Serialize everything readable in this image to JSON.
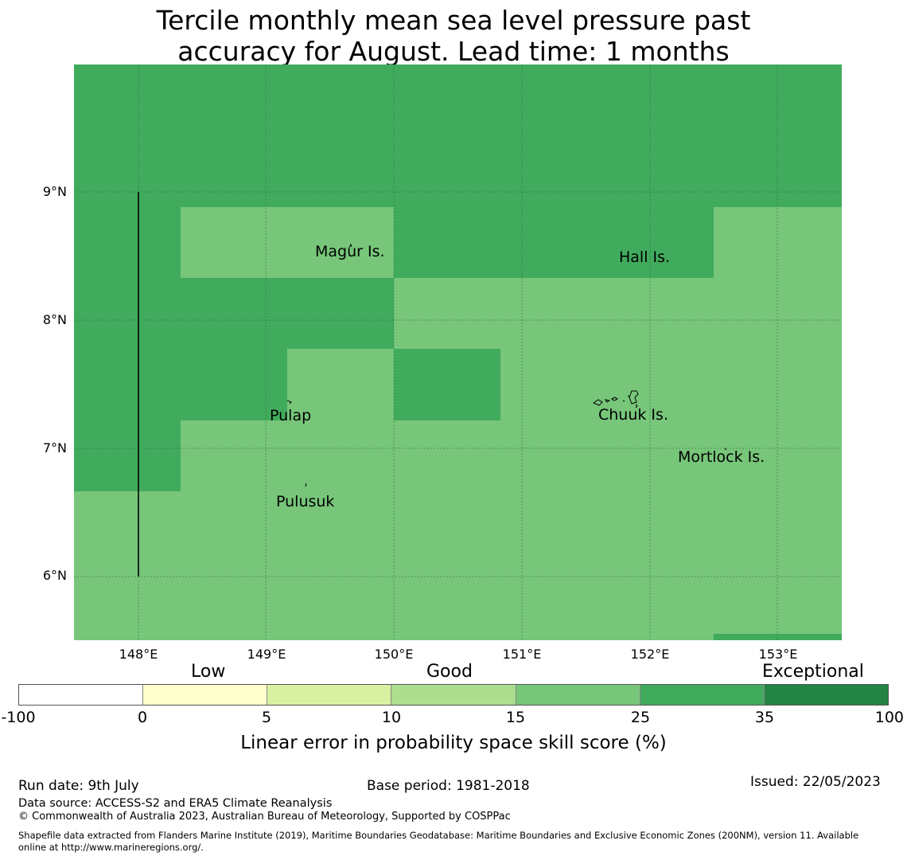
{
  "title": {
    "line1": "Tercile monthly mean sea level pressure past",
    "line2": "accuracy for August. Lead time: 1 months"
  },
  "map": {
    "lon_range": [
      147.5,
      153.5
    ],
    "lat_range": [
      5.5,
      10.0
    ],
    "x_ticks": [
      "148°E",
      "149°E",
      "150°E",
      "151°E",
      "152°E",
      "153°E"
    ],
    "y_ticks": [
      "9°N",
      "8°N",
      "7°N",
      "6°N"
    ],
    "grid": true,
    "places": {
      "magur": "Magur Is.",
      "hall": "Hall Is.",
      "pulap": "Pulap",
      "chuuk": "Chuuk Is.",
      "mortlock": "Mortlock Is.",
      "pulusuk": "Pulusuk"
    },
    "colors": {
      "cat_25_35": "#41ab5d",
      "cat_15_25": "#77c67a"
    }
  },
  "colorbar": {
    "categories": [
      "Low",
      "Good",
      "Exceptional"
    ],
    "ticks": [
      "-100",
      "0",
      "5",
      "10",
      "15",
      "25",
      "35",
      "100"
    ],
    "colors": [
      "#ffffff",
      "#ffffcc",
      "#d9f0a3",
      "#addd8e",
      "#78c679",
      "#41ab5d",
      "#238443"
    ],
    "label": "Linear error in probability space skill score (%)"
  },
  "footer": {
    "run_date": "Run date: 9th July",
    "base_period": "Base period: 1981-2018",
    "issued": "Issued: 22/05/2023",
    "data_source": "Data source: ACCESS-S2 and ERA5 Climate Reanalysis",
    "copyright": "© Commonwealth of Australia 2023, Australian Bureau of Meteorology, Supported by COSPPac",
    "shapefile_line1": "Shapefile data extracted from Flanders Marine Institute (2019), Maritime Boundaries Geodatabase: Maritime Boundaries and Exclusive Economic Zones (200NM), version 11. Available",
    "shapefile_line2": "online at http://www.marineregions.org/."
  }
}
